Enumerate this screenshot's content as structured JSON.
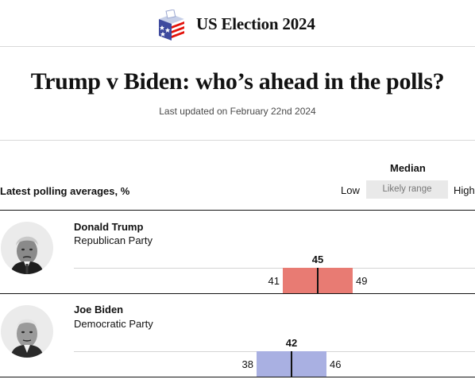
{
  "header": {
    "section_title": "US Election 2024",
    "icon": "ballot-box-icon"
  },
  "headline": "Trump v Biden: who’s ahead in the polls?",
  "updated": "Last updated on February 22nd 2024",
  "legend": {
    "median": "Median",
    "low": "Low",
    "likely_range": "Likely range",
    "high": "High"
  },
  "colors": {
    "trump": "#e87b73",
    "biden": "#a9b0e2",
    "text": "#121212"
  },
  "chart_data": {
    "type": "range",
    "title": "Latest polling averages, %",
    "candidates": [
      {
        "name": "Donald Trump",
        "party": "Republican Party",
        "low": 41,
        "median": 45,
        "high": 49
      },
      {
        "name": "Joe Biden",
        "party": "Democratic Party",
        "low": 38,
        "median": 42,
        "high": 46
      }
    ]
  }
}
